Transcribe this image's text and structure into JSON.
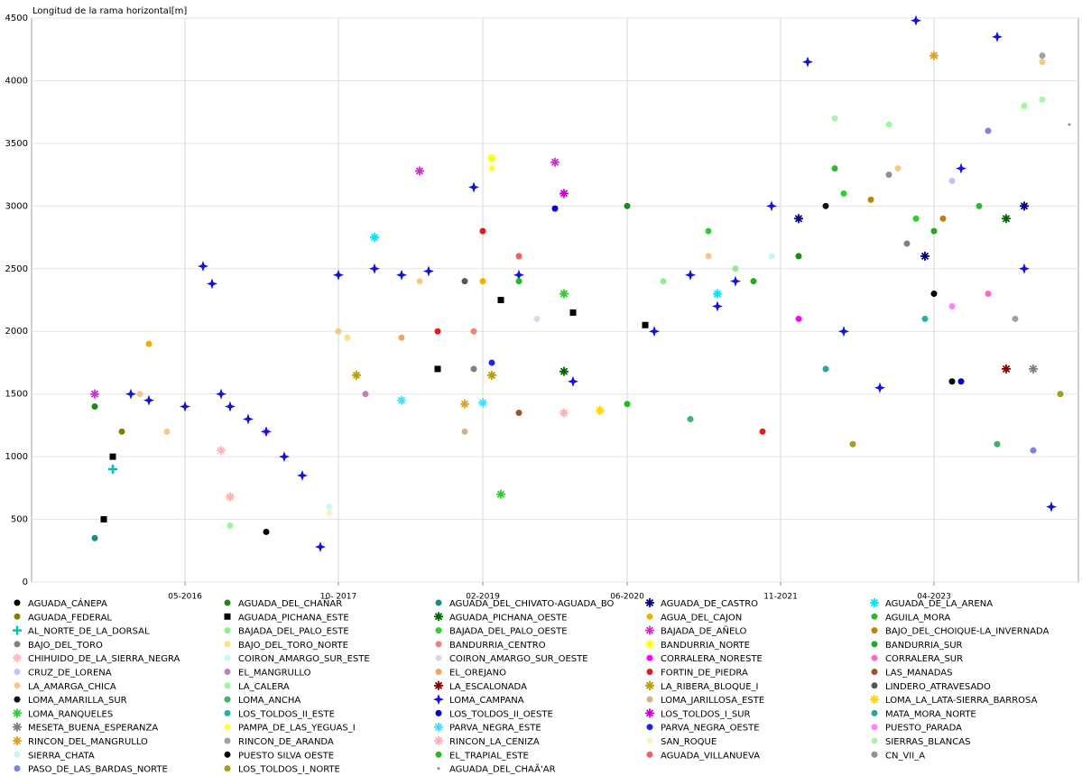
{
  "chart_data": {
    "type": "scatter",
    "y_label": "Longitud de la rama horizontal[m]",
    "xlim": [
      "2014-12",
      "2024-08"
    ],
    "ylim": [
      0,
      4500
    ],
    "xticks": [
      {
        "value": "2016-05",
        "label": "05-2016"
      },
      {
        "value": "2017-10",
        "label": "10- 2017"
      },
      {
        "value": "2019-02",
        "label": "02-2019"
      },
      {
        "value": "2020-06",
        "label": "06-2020"
      },
      {
        "value": "2021-11",
        "label": "11-2021"
      },
      {
        "value": "2023-04",
        "label": "04-2023"
      }
    ],
    "yticks": [
      0,
      500,
      1000,
      1500,
      2000,
      2500,
      3000,
      3500,
      4000,
      4500
    ],
    "grid": true,
    "legend": "bottom",
    "series": [
      {
        "name": "AGUADA_CÁNEPA",
        "color": "#000000",
        "marker": "circle",
        "x": [
          "2017-02",
          "2023-06"
        ],
        "values": [
          400,
          1600
        ]
      },
      {
        "name": "AGUADA_DEL_CHAÑAR",
        "color": "#1a8a1a",
        "marker": "circle",
        "x": [
          "2015-07",
          "2020-06",
          "2022-01"
        ],
        "values": [
          1400,
          3000,
          2600
        ]
      },
      {
        "name": "AGUADA_DEL_CHIVATO-AGUADA_BO",
        "color": "#1a8a8a",
        "marker": "circle",
        "x": [
          "2015-07"
        ],
        "values": [
          350
        ]
      },
      {
        "name": "AGUADA_DE_CASTRO",
        "color": "#000080",
        "marker": "star",
        "x": [
          "2022-01",
          "2023-03",
          "2024-02"
        ],
        "values": [
          2900,
          2600,
          3000
        ]
      },
      {
        "name": "AGUADA_DE_LA_ARENA",
        "color": "#00e5ff",
        "marker": "star",
        "x": [
          "2018-02",
          "2021-04"
        ],
        "values": [
          2750,
          2300
        ]
      },
      {
        "name": "AGUADA_FEDERAL",
        "color": "#808000",
        "marker": "circle",
        "x": [
          "2015-10"
        ],
        "values": [
          1200
        ]
      },
      {
        "name": "AGUADA_PICHANA_ESTE",
        "color": "#000000",
        "marker": "square",
        "x": [
          "2015-08",
          "2015-09",
          "2018-09",
          "2019-04",
          "2019-12",
          "2020-08"
        ],
        "values": [
          500,
          1000,
          1700,
          2250,
          2150,
          2050
        ]
      },
      {
        "name": "AGUADA_PICHANA_OESTE",
        "color": "#006400",
        "marker": "star",
        "x": [
          "2019-11",
          "2023-12"
        ],
        "values": [
          1680,
          2900
        ]
      },
      {
        "name": "AGUA_DEL_CAJON",
        "color": "#f0b000",
        "marker": "circle",
        "x": [
          "2016-01",
          "2019-02"
        ],
        "values": [
          1900,
          2400
        ]
      },
      {
        "name": "AGUILA_MORA",
        "color": "#2db82d",
        "marker": "circle",
        "x": [
          "2022-05",
          "2023-09"
        ],
        "values": [
          3300,
          3000
        ]
      },
      {
        "name": "AL_NORTE_DE_LA_DORSAL",
        "color": "#00bfbf",
        "marker": "cross",
        "x": [
          "2015-09"
        ],
        "values": [
          900
        ]
      },
      {
        "name": "BAJADA_DEL_PALO_ESTE",
        "color": "#90ee90",
        "marker": "circle",
        "x": [
          "2020-10",
          "2021-06"
        ],
        "values": [
          2400,
          2500
        ]
      },
      {
        "name": "BAJADA_DEL_PALO_OESTE",
        "color": "#32cd32",
        "marker": "circle",
        "x": [
          "2021-03",
          "2022-06",
          "2023-02"
        ],
        "values": [
          2800,
          3100,
          2900
        ]
      },
      {
        "name": "BAJADA_DE_AÑELO",
        "color": "#cc33cc",
        "marker": "star",
        "x": [
          "2015-07",
          "2018-07",
          "2019-10"
        ],
        "values": [
          1500,
          3280,
          3350
        ]
      },
      {
        "name": "BAJO_DEL_CHOIQUE-LA_INVERNADA",
        "color": "#b8860b",
        "marker": "circle",
        "x": [
          "2022-09",
          "2023-05"
        ],
        "values": [
          3050,
          2900
        ]
      },
      {
        "name": "BAJO_DEL_TORO",
        "color": "#808080",
        "marker": "circle",
        "x": [
          "2019-01",
          "2023-01"
        ],
        "values": [
          1700,
          2700
        ]
      },
      {
        "name": "BAJO_DEL_TORO_NORTE",
        "color": "#ffe080",
        "marker": "circle",
        "x": [
          "2017-11"
        ],
        "values": [
          1950
        ]
      },
      {
        "name": "BANDURRIA_CENTRO",
        "color": "#f08080",
        "marker": "circle",
        "x": [
          "2019-01"
        ],
        "values": [
          2000
        ]
      },
      {
        "name": "BANDURRIA_NORTE",
        "color": "#ffff00",
        "marker": "star",
        "x": [
          "2019-03"
        ],
        "values": [
          3380
        ]
      },
      {
        "name": "BANDURRIA_SUR",
        "color": "#22aa22",
        "marker": "circle",
        "x": [
          "2021-08",
          "2023-04"
        ],
        "values": [
          2400,
          2800
        ]
      },
      {
        "name": "CHIHUIDO_DE_LA_SIERRA_NEGRA",
        "color": "#ffb6c1",
        "marker": "star",
        "x": [
          "2016-09",
          "2017-02"
        ],
        "values": [
          1050,
          1200
        ]
      },
      {
        "name": "COIRON_AMARGO_SUR_ESTE",
        "color": "#c8f8f8",
        "marker": "circle",
        "x": [
          "2017-09"
        ],
        "values": [
          600
        ]
      },
      {
        "name": "COIRON_AMARGO_SUR_OESTE",
        "color": "#d8d8ec",
        "marker": "circle",
        "x": [
          "2019-08"
        ],
        "values": [
          2100
        ]
      },
      {
        "name": "CORRALERA_NORESTE",
        "color": "#ff00ff",
        "marker": "circle",
        "x": [
          "2022-01"
        ],
        "values": [
          2100
        ]
      },
      {
        "name": "CORRALERA_SUR",
        "color": "#ff66cc",
        "marker": "circle",
        "x": [
          "2023-10"
        ],
        "values": [
          2300
        ]
      },
      {
        "name": "CRUZ_DE_LORENA",
        "color": "#c0c0ff",
        "marker": "circle",
        "x": [
          "2023-06"
        ],
        "values": [
          3200
        ]
      },
      {
        "name": "EL_MANGRULLO",
        "color": "#c080c0",
        "marker": "circle",
        "x": [
          "2018-01"
        ],
        "values": [
          1500
        ]
      },
      {
        "name": "EL_OREJANO",
        "color": "#f4a460",
        "marker": "circle",
        "x": [
          "2018-05"
        ],
        "values": [
          1950
        ]
      },
      {
        "name": "FORTIN_DE_PIEDRA",
        "color": "#e41a1c",
        "marker": "circle",
        "x": [
          "2018-09",
          "2019-02",
          "2021-09"
        ],
        "values": [
          2000,
          2800,
          1200
        ]
      },
      {
        "name": "LAS_MANADAS",
        "color": "#a0522d",
        "marker": "circle",
        "x": [
          "2019-06"
        ],
        "values": [
          1350
        ]
      },
      {
        "name": "LA_AMARGA_CHICA",
        "color": "#f5c88a",
        "marker": "circle",
        "x": [
          "2015-12",
          "2016-03",
          "2017-10",
          "2018-07",
          "2021-03",
          "2022-12",
          "2024-04"
        ],
        "values": [
          1500,
          1200,
          2000,
          2400,
          2600,
          3300,
          4150
        ]
      },
      {
        "name": "LA_CALERA",
        "color": "#98fb98",
        "marker": "circle",
        "x": [
          "2016-10",
          "2022-11",
          "2024-02"
        ],
        "values": [
          450,
          3650,
          3800
        ]
      },
      {
        "name": "LA_ESCALONADA",
        "color": "#8b0000",
        "marker": "star",
        "x": [
          "2023-12"
        ],
        "values": [
          1700
        ]
      },
      {
        "name": "LA_RIBERA_BLOQUE_I",
        "color": "#b8a000",
        "marker": "star",
        "x": [
          "2017-12",
          "2019-03"
        ],
        "values": [
          1650,
          1650
        ]
      },
      {
        "name": "LINDERO_ATRAVESADO",
        "color": "#555555",
        "marker": "circle",
        "x": [
          "2018-12"
        ],
        "values": [
          2400
        ]
      },
      {
        "name": "LOMA_AMARILLA_SUR",
        "color": "#111111",
        "marker": "circle",
        "x": [
          "2022-04"
        ],
        "values": [
          3000
        ]
      },
      {
        "name": "LOMA_ANCHA",
        "color": "#3cb371",
        "marker": "circle",
        "x": [
          "2021-01",
          "2023-11"
        ],
        "values": [
          1300,
          1100
        ]
      },
      {
        "name": "LOMA_CAMPANA",
        "color": "#1010e0",
        "marker": "diamond",
        "x": [
          "2015-11",
          "2016-01",
          "2016-05",
          "2016-07",
          "2016-08",
          "2016-09",
          "2016-10",
          "2016-12",
          "2017-02",
          "2017-04",
          "2017-06",
          "2017-08",
          "2017-10",
          "2018-02",
          "2018-05",
          "2018-08",
          "2019-01",
          "2019-06",
          "2019-12",
          "2020-09",
          "2021-01",
          "2021-04",
          "2021-06",
          "2021-10",
          "2022-02",
          "2022-06",
          "2022-10",
          "2023-02",
          "2023-07",
          "2023-11",
          "2024-02",
          "2024-05"
        ],
        "values": [
          1500,
          1450,
          1400,
          2520,
          2380,
          1500,
          1400,
          1300,
          1200,
          1000,
          850,
          280,
          2450,
          2500,
          2450,
          2480,
          3150,
          2450,
          1600,
          2000,
          2450,
          2200,
          2400,
          3000,
          4150,
          2000,
          1550,
          4480,
          3300,
          4350,
          2500,
          600
        ]
      },
      {
        "name": "LOMA_JARILLOSA_ESTE",
        "color": "#d2b48c",
        "marker": "circle",
        "x": [
          "2018-12"
        ],
        "values": [
          1200
        ]
      },
      {
        "name": "LOMA_LA_LATA-SIERRA_BARROSA",
        "color": "#ffd700",
        "marker": "star",
        "x": [
          "2020-03"
        ],
        "values": [
          1370
        ]
      },
      {
        "name": "LOMA_RANQUELES",
        "color": "#33cc33",
        "marker": "star",
        "x": [
          "2019-04",
          "2019-11"
        ],
        "values": [
          700,
          2300
        ]
      },
      {
        "name": "LOS_TOLDOS_II_ESTE",
        "color": "#20b2aa",
        "marker": "circle",
        "x": [
          "2023-03"
        ],
        "values": [
          2100
        ]
      },
      {
        "name": "LOS_TOLDOS_II_OESTE",
        "color": "#0000cd",
        "marker": "circle",
        "x": [
          "2019-10",
          "2023-07"
        ],
        "values": [
          2980,
          1600
        ]
      },
      {
        "name": "LOS_TOLDOS_I_SUR",
        "color": "#cc00cc",
        "marker": "star",
        "x": [
          "2019-11"
        ],
        "values": [
          3100
        ]
      },
      {
        "name": "MATA_MORA_NORTE",
        "color": "#30a0a0",
        "marker": "circle",
        "x": [
          "2022-04"
        ],
        "values": [
          1700
        ]
      },
      {
        "name": "MESETA_BUENA_ESPERANZA",
        "color": "#808080",
        "marker": "star",
        "x": [
          "2024-03"
        ],
        "values": [
          1700
        ]
      },
      {
        "name": "PAMPA_DE_LAS_YEGUAS_I",
        "color": "#ffff40",
        "marker": "circle",
        "x": [
          "2019-03"
        ],
        "values": [
          3300
        ]
      },
      {
        "name": "PARVA_NEGRA_ESTE",
        "color": "#40e0ff",
        "marker": "star",
        "x": [
          "2018-05",
          "2019-02"
        ],
        "values": [
          1450,
          1430
        ]
      },
      {
        "name": "PARVA_NEGRA_OESTE",
        "color": "#2020ff",
        "marker": "circle",
        "x": [
          "2019-03"
        ],
        "values": [
          1750
        ]
      },
      {
        "name": "PUESTO_PARADA",
        "color": "#ff80ff",
        "marker": "circle",
        "x": [
          "2023-06"
        ],
        "values": [
          2200
        ]
      },
      {
        "name": "RINCON_DEL_MANGRULLO",
        "color": "#e0a020",
        "marker": "star",
        "x": [
          "2018-12",
          "2023-04"
        ],
        "values": [
          1420,
          4200
        ]
      },
      {
        "name": "RINCON_DE_ARANDA",
        "color": "#a0a0a0",
        "marker": "circle",
        "x": [
          "2024-01",
          "2024-04"
        ],
        "values": [
          2100,
          4200
        ]
      },
      {
        "name": "RINCON_LA_CENIZA",
        "color": "#ffb0b0",
        "marker": "star",
        "x": [
          "2019-11",
          "2016-10"
        ],
        "values": [
          1350,
          680
        ]
      },
      {
        "name": "SAN_ROQUE",
        "color": "#fff0c0",
        "marker": "circle",
        "x": [
          "2017-09"
        ],
        "values": [
          550
        ]
      },
      {
        "name": "SIERRAS_BLANCAS",
        "color": "#b0f0b0",
        "marker": "circle",
        "x": [
          "2022-05",
          "2024-04"
        ],
        "values": [
          3700,
          3850
        ]
      },
      {
        "name": "SIERRA_CHATA",
        "color": "#c8f4f4",
        "marker": "circle",
        "x": [
          "2021-10"
        ],
        "values": [
          2600
        ]
      },
      {
        "name": "PUESTO SILVA OESTE",
        "color": "#000000",
        "marker": "circle",
        "x": [
          "2023-04"
        ],
        "values": [
          2300
        ]
      },
      {
        "name": "EL_TRAPIAL_ESTE",
        "color": "#22bb22",
        "marker": "circle",
        "x": [
          "2019-06",
          "2020-06"
        ],
        "values": [
          2400,
          1420
        ]
      },
      {
        "name": "AGUADA_VILLANUEVA",
        "color": "#f06060",
        "marker": "circle",
        "x": [
          "2019-06"
        ],
        "values": [
          2600
        ]
      },
      {
        "name": "CN_VII_A",
        "color": "#909090",
        "marker": "circle",
        "x": [
          "2022-11"
        ],
        "values": [
          3250
        ]
      },
      {
        "name": "PASO_DE_LAS_BARDAS_NORTE",
        "color": "#8080e0",
        "marker": "circle",
        "x": [
          "2023-10",
          "2024-03"
        ],
        "values": [
          3600,
          1050
        ]
      },
      {
        "name": "LOS_TOLDOS_I_NORTE",
        "color": "#a0a020",
        "marker": "circle",
        "x": [
          "2022-07",
          "2024-06"
        ],
        "values": [
          1100,
          1500
        ]
      },
      {
        "name": "AGUADA_DEL_CHAÃ'AR",
        "color": "#909090",
        "marker": "dot",
        "x": [
          "2024-07"
        ],
        "values": [
          3650
        ]
      }
    ]
  }
}
